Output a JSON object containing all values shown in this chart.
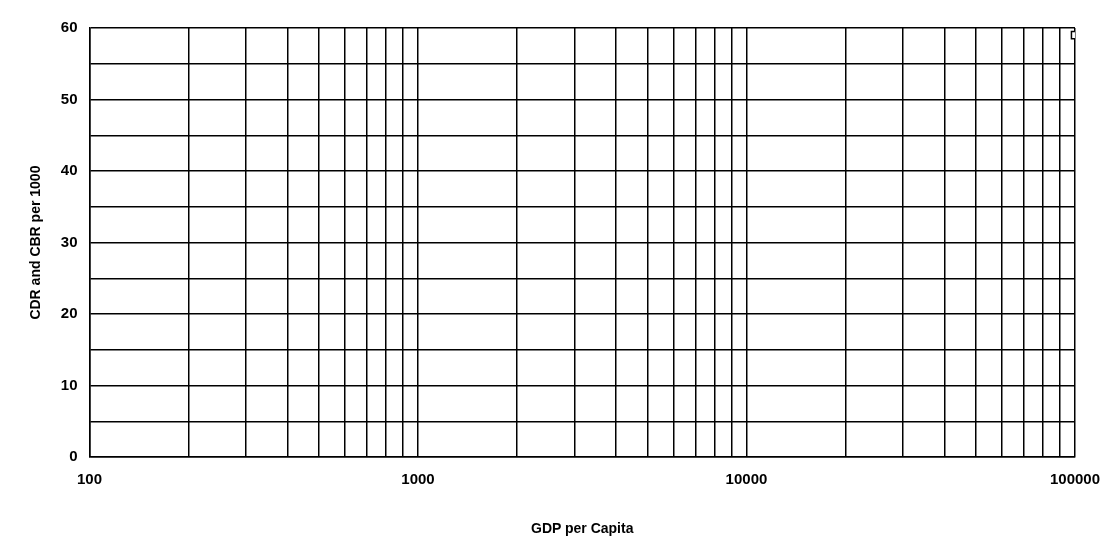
{
  "chart_data": {
    "type": "scatter",
    "xlabel": "GDP per Capita",
    "ylabel": "CDR and CBR per 1000",
    "log": "x",
    "grid": true,
    "marker": "square",
    "legend": false,
    "series": [
      {
        "color": "#000000",
        "x": [
          100000
        ],
        "values": [
          59
        ]
      }
    ],
    "xlim": [
      100,
      100000
    ],
    "xticks": [
      100,
      {
        "value": 200,
        "label": null
      },
      {
        "value": 300,
        "label": null
      },
      {
        "value": 400,
        "label": null
      },
      {
        "value": 500,
        "label": null
      },
      {
        "value": 600,
        "label": null
      },
      {
        "value": 700,
        "label": null
      },
      {
        "value": 800,
        "label": null
      },
      {
        "value": 900,
        "label": null
      },
      1000,
      {
        "value": 2000,
        "label": null
      },
      {
        "value": 3000,
        "label": null
      },
      {
        "value": 4000,
        "label": null
      },
      {
        "value": 5000,
        "label": null
      },
      {
        "value": 6000,
        "label": null
      },
      {
        "value": 7000,
        "label": null
      },
      {
        "value": 8000,
        "label": null
      },
      {
        "value": 9000,
        "label": null
      },
      10000,
      {
        "value": 20000,
        "label": null
      },
      {
        "value": 30000,
        "label": null
      },
      {
        "value": 40000,
        "label": null
      },
      {
        "value": 50000,
        "label": null
      },
      {
        "value": 60000,
        "label": null
      },
      {
        "value": 70000,
        "label": null
      },
      {
        "value": 80000,
        "label": null
      },
      {
        "value": 90000,
        "label": null
      },
      100000
    ],
    "ylim": [
      0,
      60
    ],
    "yticks": [
      0,
      {
        "value": 5,
        "label": null
      },
      10,
      {
        "value": 15,
        "label": null
      },
      20,
      {
        "value": 25,
        "label": null
      },
      30,
      {
        "value": 35,
        "label": null
      },
      40,
      {
        "value": 45,
        "label": null
      },
      50,
      {
        "value": 55,
        "label": null
      },
      60
    ]
  }
}
